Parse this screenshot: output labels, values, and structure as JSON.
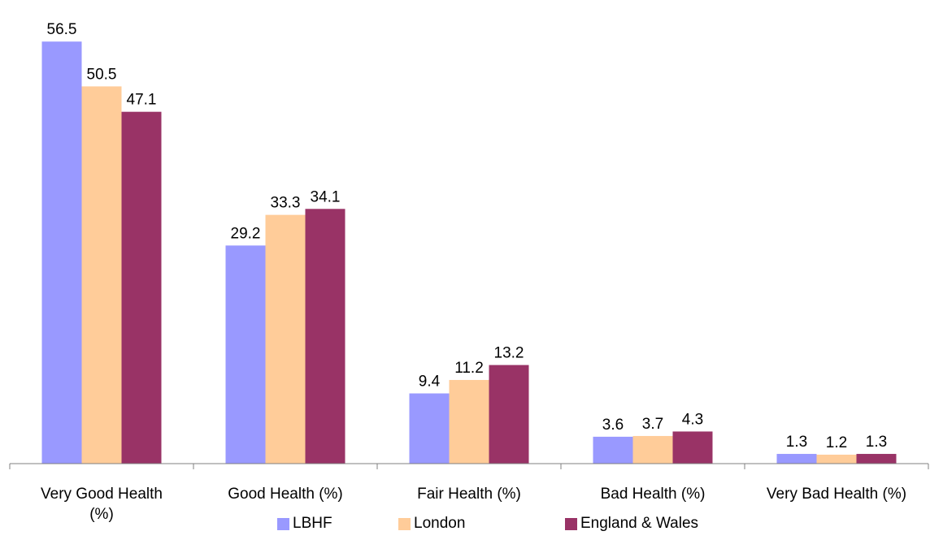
{
  "chart_data": {
    "type": "bar",
    "title": "",
    "xlabel": "",
    "ylabel": "",
    "ylim": [
      0,
      60
    ],
    "grid": false,
    "legend_position": "bottom",
    "categories": [
      [
        "Very Good Health",
        "(%)"
      ],
      [
        "Good Health (%)"
      ],
      [
        "Fair Health (%)"
      ],
      [
        "Bad Health (%)"
      ],
      [
        "Very Bad Health (%)"
      ]
    ],
    "series": [
      {
        "name": "LBHF",
        "color": "#9999ff",
        "values": [
          56.5,
          29.2,
          9.4,
          3.6,
          1.3
        ]
      },
      {
        "name": "London",
        "color": "#ffcc99",
        "values": [
          50.5,
          33.3,
          11.2,
          3.7,
          1.2
        ]
      },
      {
        "name": "England & Wales",
        "color": "#993366",
        "values": [
          47.1,
          34.1,
          13.2,
          4.3,
          1.3
        ]
      }
    ]
  }
}
